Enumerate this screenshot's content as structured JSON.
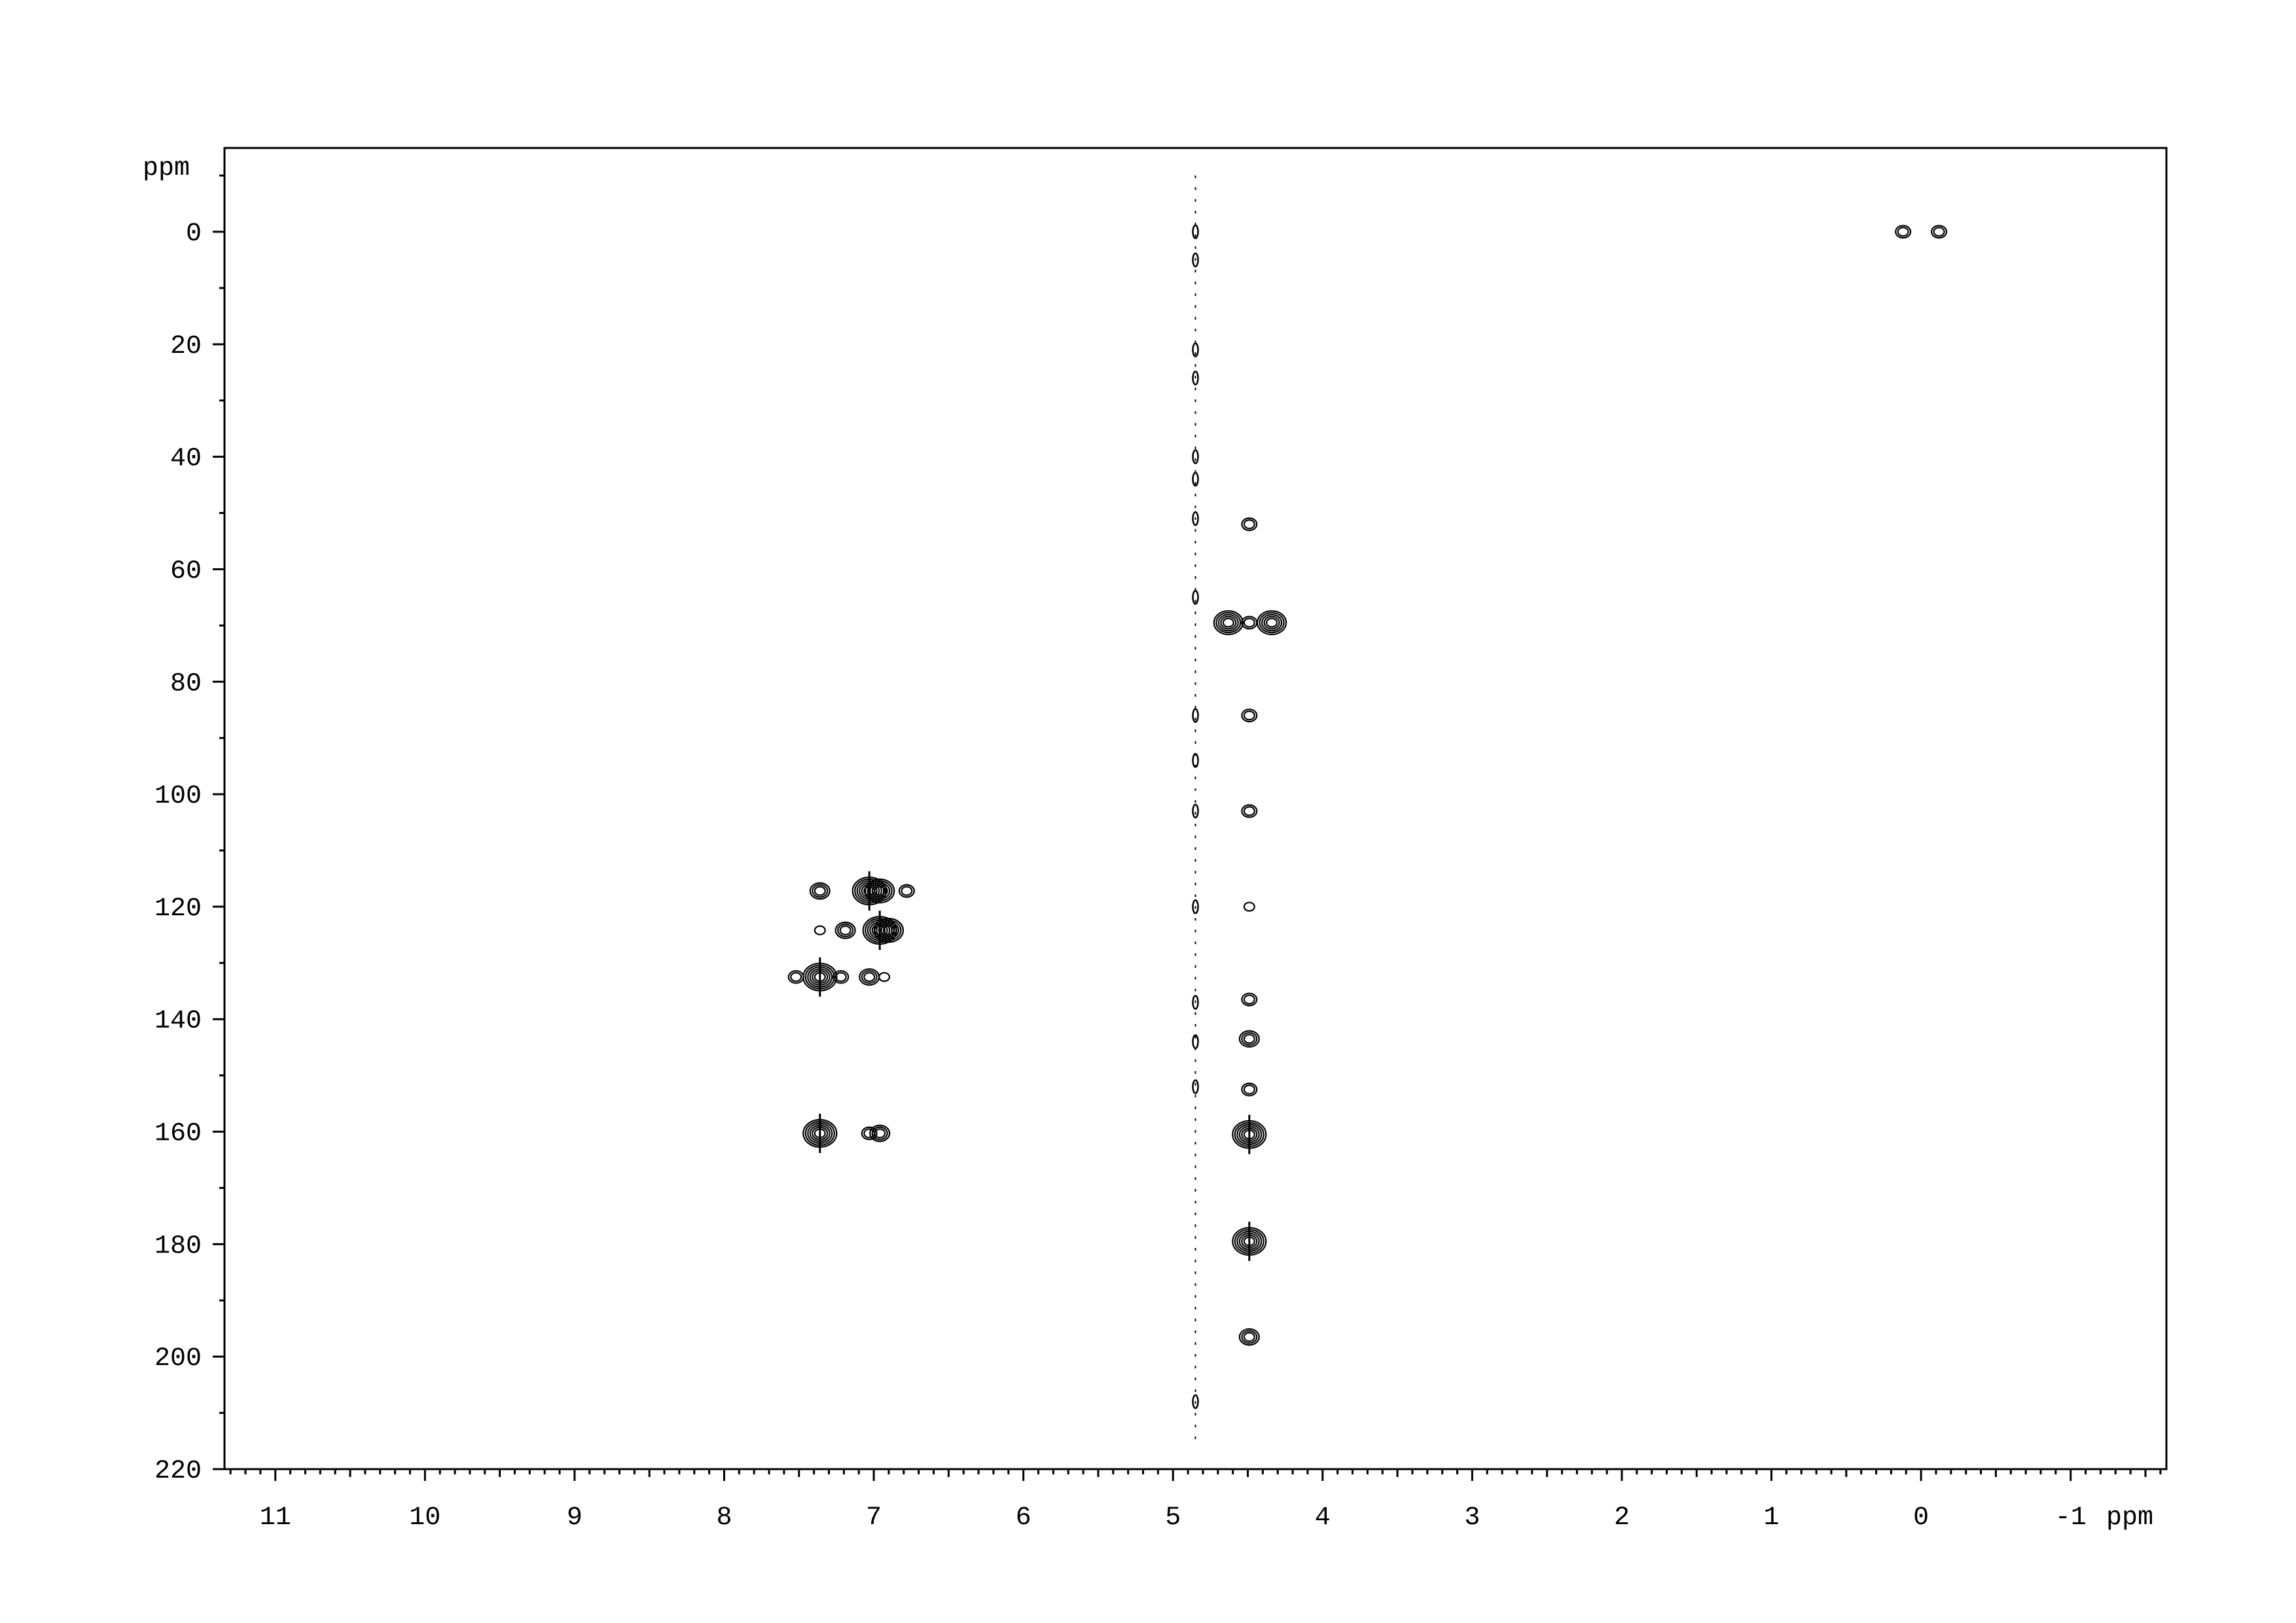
{
  "chart_data": {
    "type": "contour",
    "title": "",
    "xlabel": "ppm",
    "ylabel": "ppm",
    "xlim": [
      11.34,
      -1.64
    ],
    "ylim": [
      -14.9,
      220
    ],
    "x_reversed": true,
    "y_reversed": true,
    "grid": false,
    "legend": "none",
    "x_ticks": [
      11,
      10,
      9,
      8,
      7,
      6,
      5,
      4,
      3,
      2,
      1,
      0,
      -1
    ],
    "x_tick_labels": [
      "11",
      "10",
      "9",
      "8",
      "7",
      "6",
      "5",
      "4",
      "3",
      "2",
      "1",
      "0",
      "-1"
    ],
    "y_ticks": [
      0,
      20,
      40,
      60,
      80,
      100,
      120,
      140,
      160,
      180,
      200,
      220
    ],
    "y_tick_labels": [
      "0",
      "20",
      "40",
      "60",
      "80",
      "100",
      "120",
      "140",
      "160",
      "180",
      "200",
      "220"
    ],
    "colors": {
      "contour": "#000000",
      "frame": "#000000"
    },
    "peaks": [
      {
        "x": 0.12,
        "y": 0,
        "intensity": 1
      },
      {
        "x": -0.12,
        "y": 0,
        "intensity": 1
      },
      {
        "x": 4.63,
        "y": 69.5,
        "intensity": 3
      },
      {
        "x": 4.49,
        "y": 69.5,
        "intensity": 1
      },
      {
        "x": 4.34,
        "y": 69.5,
        "intensity": 3
      },
      {
        "x": 4.49,
        "y": 52,
        "intensity": 1
      },
      {
        "x": 4.49,
        "y": 86,
        "intensity": 1
      },
      {
        "x": 4.49,
        "y": 103,
        "intensity": 1
      },
      {
        "x": 4.49,
        "y": 120,
        "intensity": 0.5
      },
      {
        "x": 4.49,
        "y": 136.5,
        "intensity": 1
      },
      {
        "x": 4.49,
        "y": 143.5,
        "intensity": 2
      },
      {
        "x": 4.49,
        "y": 152.5,
        "intensity": 1
      },
      {
        "x": 4.49,
        "y": 160.5,
        "intensity": 4
      },
      {
        "x": 4.49,
        "y": 179.5,
        "intensity": 4
      },
      {
        "x": 4.49,
        "y": 196.5,
        "intensity": 2
      },
      {
        "x": 7.36,
        "y": 117.2,
        "intensity": 2
      },
      {
        "x": 7.03,
        "y": 117.2,
        "intensity": 4
      },
      {
        "x": 6.96,
        "y": 117.2,
        "intensity": 3
      },
      {
        "x": 6.78,
        "y": 117.2,
        "intensity": 1.5
      },
      {
        "x": 7.36,
        "y": 124.2,
        "intensity": 0.5
      },
      {
        "x": 7.19,
        "y": 124.2,
        "intensity": 2
      },
      {
        "x": 6.96,
        "y": 124.2,
        "intensity": 4
      },
      {
        "x": 6.9,
        "y": 124.2,
        "intensity": 3
      },
      {
        "x": 7.52,
        "y": 132.5,
        "intensity": 1
      },
      {
        "x": 7.36,
        "y": 132.5,
        "intensity": 4
      },
      {
        "x": 7.22,
        "y": 132.5,
        "intensity": 1
      },
      {
        "x": 7.03,
        "y": 132.5,
        "intensity": 2
      },
      {
        "x": 6.93,
        "y": 132.5,
        "intensity": 0.5
      },
      {
        "x": 7.36,
        "y": 160.3,
        "intensity": 4
      },
      {
        "x": 7.03,
        "y": 160.3,
        "intensity": 1.5
      },
      {
        "x": 6.96,
        "y": 160.3,
        "intensity": 2
      }
    ],
    "streak": {
      "x": 4.85,
      "y_range": [
        -10,
        215
      ],
      "spots": [
        0,
        5,
        21,
        26,
        40,
        44,
        51,
        65,
        86,
        94,
        103,
        120,
        137,
        144,
        152,
        208
      ]
    }
  }
}
